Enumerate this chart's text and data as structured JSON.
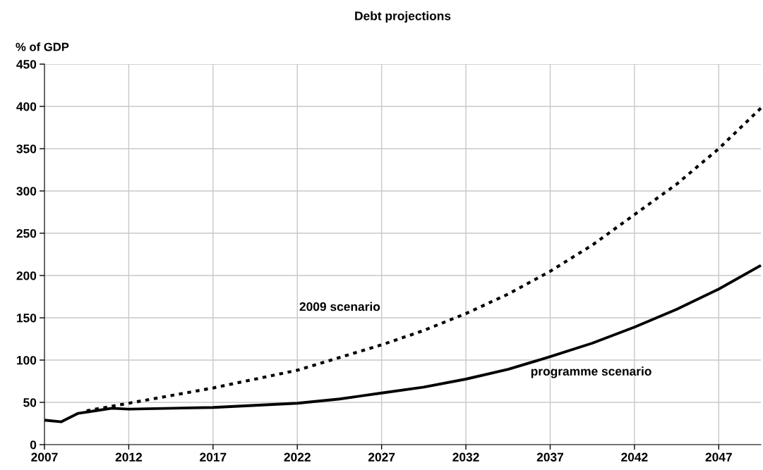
{
  "chart_data": {
    "type": "line",
    "title": "Debt projections",
    "ylabel": "% of GDP",
    "xlim": [
      2007,
      2049.5
    ],
    "xticks": [
      2007,
      2012,
      2017,
      2022,
      2027,
      2032,
      2037,
      2042,
      2047
    ],
    "ylim": [
      0,
      450
    ],
    "yticks": [
      0,
      50,
      100,
      150,
      200,
      250,
      300,
      350,
      400,
      450
    ],
    "grid": true,
    "legend": false,
    "series": [
      {
        "name": "programme scenario",
        "color": "#000000",
        "line_style": "solid",
        "x": [
          2007,
          2008,
          2009,
          2010,
          2011,
          2012,
          2017,
          2022,
          2024.5,
          2027,
          2029.5,
          2032,
          2034.5,
          2037,
          2039.5,
          2042,
          2044.5,
          2047,
          2049.5
        ],
        "values": [
          29,
          27,
          37,
          40,
          43,
          42,
          44,
          49,
          54,
          61,
          68,
          77.5,
          89,
          104,
          120,
          139,
          160,
          184,
          212
        ]
      },
      {
        "name": "2009 scenario",
        "color": "#000000",
        "line_style": "dotted",
        "x": [
          2009.5,
          2012,
          2017,
          2022,
          2027,
          2029.5,
          2032,
          2034.5,
          2037,
          2039.5,
          2042,
          2044.5,
          2047,
          2049.5
        ],
        "values": [
          40,
          49,
          67,
          88,
          118,
          135,
          155,
          178,
          205,
          236,
          272,
          308,
          350,
          398
        ]
      }
    ]
  }
}
